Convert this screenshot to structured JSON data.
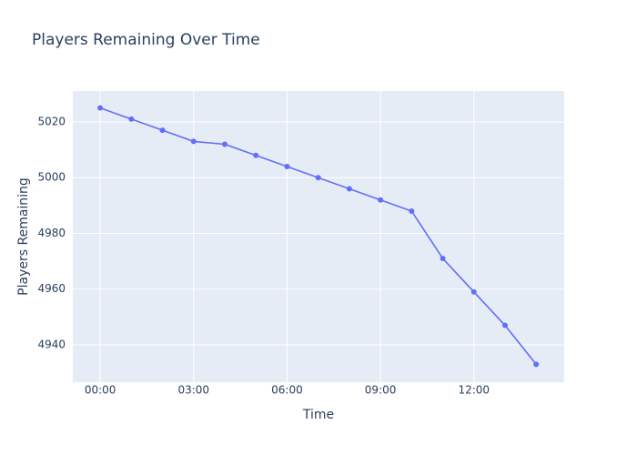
{
  "chart_data": {
    "type": "line",
    "title": "Players Remaining Over Time",
    "x_label": "Time",
    "y_label": "Players Remaining",
    "x": [
      0,
      1,
      2,
      3,
      4,
      5,
      6,
      7,
      8,
      9,
      10,
      11,
      12,
      13,
      14
    ],
    "series": [
      {
        "name": "Players Remaining",
        "color": "#636efa",
        "values": [
          5025,
          5021,
          5017,
          5013,
          5012,
          5008,
          5004,
          5000,
          4996,
          4992,
          4988,
          4971,
          4959,
          4947,
          4933
        ]
      }
    ],
    "xlim": [
      -0.88,
      14.9
    ],
    "xticks": [
      {
        "value": 0,
        "label": "00:00"
      },
      {
        "value": 3,
        "label": "03:00"
      },
      {
        "value": 6,
        "label": "06:00"
      },
      {
        "value": 9,
        "label": "09:00"
      },
      {
        "value": 12,
        "label": "12:00"
      }
    ],
    "ylim": [
      4926.6,
      5031.1
    ],
    "yticks": [
      4940,
      4960,
      4980,
      5000,
      5020
    ],
    "grid": true
  }
}
